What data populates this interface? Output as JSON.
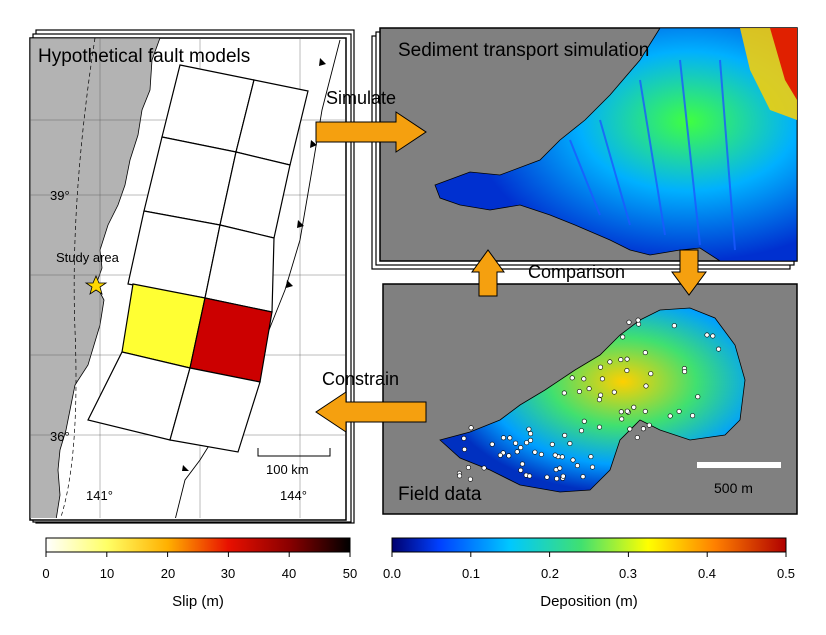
{
  "panels": {
    "fault_models": {
      "title": "Hypothetical fault models"
    },
    "simulation": {
      "title": "Sediment transport simulation"
    },
    "field": {
      "title": "Field data"
    }
  },
  "map": {
    "lat_labels": [
      "39°",
      "36°"
    ],
    "lon_labels": [
      "141°",
      "144°"
    ],
    "study_area": "Study area",
    "scale_bar": "100 km",
    "land_color": "#b3b3b3",
    "sea_color": "#ffffff"
  },
  "field_map": {
    "scale_bar": "500 m"
  },
  "arrows": {
    "simulate": "Simulate",
    "comparison": "Comparison",
    "constrain": "Constrain",
    "color": "#f5a00f"
  },
  "colorbars": {
    "slip": {
      "label": "Slip (m)",
      "ticks": [
        "0",
        "10",
        "20",
        "30",
        "40",
        "50"
      ],
      "colors": [
        "#ffffff",
        "#ffff00",
        "#ff8000",
        "#e00000",
        "#8b0000",
        "#000000"
      ]
    },
    "deposition": {
      "label": "Deposition (m)",
      "ticks": [
        "0.0",
        "0.1",
        "0.2",
        "0.3",
        "0.4",
        "0.5"
      ],
      "colors": [
        "#00008b",
        "#0050ff",
        "#00c8ff",
        "#40e070",
        "#ffff00",
        "#ff8000",
        "#cc0000"
      ]
    }
  },
  "subfaults": {
    "highlight_colors": [
      "#ffff33",
      "#cc0000"
    ]
  }
}
